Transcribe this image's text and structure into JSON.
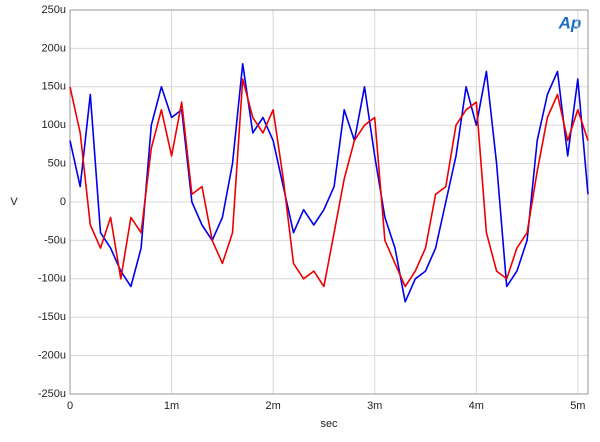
{
  "chart_data": {
    "type": "line",
    "logo": "Ap",
    "ylabel": "V",
    "xlabel": "sec",
    "grid": true,
    "xlim": [
      0,
      0.0051
    ],
    "xticks": [
      0,
      {
        "value": 0.001,
        "label": "1m"
      },
      {
        "value": 0.002,
        "label": "2m"
      },
      {
        "value": 0.003,
        "label": "3m"
      },
      {
        "value": 0.004,
        "label": "4m"
      },
      {
        "value": 0.005,
        "label": "5m"
      }
    ],
    "ylim": [
      -0.00025,
      0.00025
    ],
    "yticks": [
      {
        "value": -0.00025,
        "label": "-250u"
      },
      {
        "value": -0.0002,
        "label": "-200u"
      },
      {
        "value": -0.00015,
        "label": "-150u"
      },
      {
        "value": -0.0001,
        "label": "-100u"
      },
      {
        "value": -5e-05,
        "label": "-50u"
      },
      0,
      {
        "value": 5e-05,
        "label": "50u"
      },
      {
        "value": 0.0001,
        "label": "100u"
      },
      {
        "value": 0.00015,
        "label": "150u"
      },
      {
        "value": 0.0002,
        "label": "200u"
      },
      {
        "value": 0.00025,
        "label": "250u"
      }
    ],
    "x": [
      0,
      0.0001,
      0.0002,
      0.0003,
      0.0004,
      0.0005,
      0.0006,
      0.0007,
      0.0008,
      0.0009,
      0.001,
      0.0011,
      0.0012,
      0.0013,
      0.0014,
      0.0015,
      0.0016,
      0.0017,
      0.0018,
      0.0019,
      0.002,
      0.0021,
      0.0022,
      0.0023,
      0.0024,
      0.0025,
      0.0026,
      0.0027,
      0.0028,
      0.0029,
      0.003,
      0.0031,
      0.0032,
      0.0033,
      0.0034,
      0.0035,
      0.0036,
      0.0037,
      0.0038,
      0.0039,
      0.004,
      0.0041,
      0.0042,
      0.0043,
      0.0044,
      0.0045,
      0.0046,
      0.0047,
      0.0048,
      0.0049,
      0.005,
      0.0051
    ],
    "series": [
      {
        "color": "#0000ee",
        "values": [
          8e-05,
          2e-05,
          0.00014,
          -4e-05,
          -6e-05,
          -9e-05,
          -0.00011,
          -6e-05,
          0.0001,
          0.00015,
          0.00011,
          0.00012,
          0,
          -3e-05,
          -5e-05,
          -2e-05,
          5e-05,
          0.00018,
          9e-05,
          0.00011,
          8e-05,
          2e-05,
          -4e-05,
          -1e-05,
          -3e-05,
          -1e-05,
          2e-05,
          0.00012,
          8e-05,
          0.00015,
          6e-05,
          -2e-05,
          -6e-05,
          -0.00013,
          -0.0001,
          -9e-05,
          -6e-05,
          0,
          6e-05,
          0.00015,
          0.0001,
          0.00017,
          5e-05,
          -0.00011,
          -9e-05,
          -5e-05,
          8e-05,
          0.00014,
          0.00017,
          6e-05,
          0.00016,
          1e-05
        ]
      },
      {
        "color": "#ee0000",
        "values": [
          0.00015,
          9e-05,
          -3e-05,
          -6e-05,
          -2e-05,
          -0.0001,
          -2e-05,
          -4e-05,
          7e-05,
          0.00012,
          6e-05,
          0.00013,
          1e-05,
          2e-05,
          -5e-05,
          -8e-05,
          -4e-05,
          0.00016,
          0.00011,
          9e-05,
          0.00012,
          3e-05,
          -8e-05,
          -0.0001,
          -9e-05,
          -0.00011,
          -4e-05,
          3e-05,
          8e-05,
          0.0001,
          0.00011,
          -5e-05,
          -8e-05,
          -0.00011,
          -9e-05,
          -6e-05,
          1e-05,
          2e-05,
          0.0001,
          0.00012,
          0.00013,
          -4e-05,
          -9e-05,
          -0.0001,
          -6e-05,
          -4e-05,
          4e-05,
          0.00011,
          0.00014,
          8e-05,
          0.00012,
          8e-05
        ]
      }
    ]
  }
}
